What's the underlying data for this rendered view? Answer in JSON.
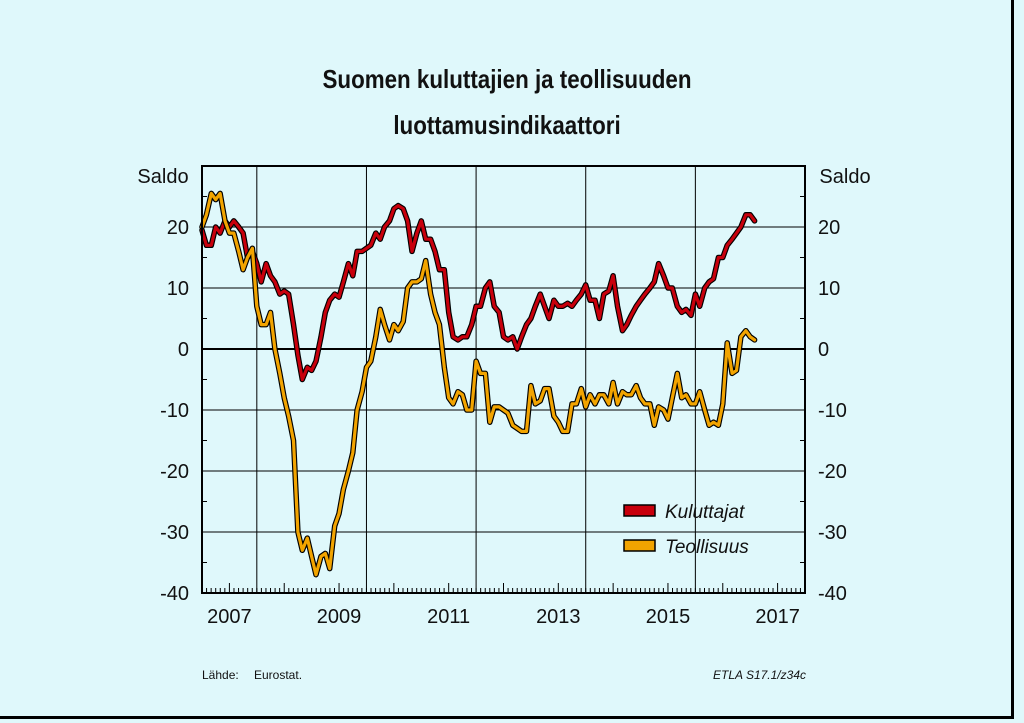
{
  "title_line1": "Suomen kuluttajien ja teollisuuden",
  "title_line2": "luottamusindikaattori",
  "source_label": "Lähde:",
  "source_value": "Eurostat.",
  "code": "ETLA S17.1/z34c",
  "colors": {
    "background": "#dff8fb",
    "kuluttajat": "#c8000c",
    "teollisuus": "#f2a400"
  },
  "chart_data": {
    "type": "line",
    "ylabel_left": "Saldo",
    "ylabel_right": "Saldo",
    "ylim": [
      -40,
      30
    ],
    "yticks": [
      20,
      10,
      0,
      -10,
      -20,
      -30,
      -40
    ],
    "xlim": [
      2006.5,
      2017.5
    ],
    "xticks": [
      2007,
      2009,
      2011,
      2013,
      2015,
      2017
    ],
    "grid": true,
    "legend_position": "bottom-right",
    "series": [
      {
        "name": "Kuluttajat",
        "color": "#c8000c",
        "points": [
          [
            2006.5,
            19.5
          ],
          [
            2006.58,
            17
          ],
          [
            2006.67,
            17
          ],
          [
            2006.75,
            20
          ],
          [
            2006.83,
            19
          ],
          [
            2006.92,
            21
          ],
          [
            2007.0,
            20
          ],
          [
            2007.08,
            21
          ],
          [
            2007.17,
            20
          ],
          [
            2007.25,
            19
          ],
          [
            2007.33,
            15
          ],
          [
            2007.42,
            16
          ],
          [
            2007.5,
            14
          ],
          [
            2007.58,
            11
          ],
          [
            2007.67,
            14
          ],
          [
            2007.75,
            12
          ],
          [
            2007.83,
            11
          ],
          [
            2007.92,
            9
          ],
          [
            2008.0,
            9.5
          ],
          [
            2008.08,
            9
          ],
          [
            2008.17,
            4
          ],
          [
            2008.25,
            -1
          ],
          [
            2008.33,
            -5
          ],
          [
            2008.42,
            -3
          ],
          [
            2008.5,
            -3.5
          ],
          [
            2008.58,
            -2
          ],
          [
            2008.67,
            2
          ],
          [
            2008.75,
            6
          ],
          [
            2008.83,
            8
          ],
          [
            2008.92,
            9
          ],
          [
            2009.0,
            8.5
          ],
          [
            2009.08,
            11
          ],
          [
            2009.17,
            14
          ],
          [
            2009.25,
            12
          ],
          [
            2009.33,
            16
          ],
          [
            2009.42,
            16
          ],
          [
            2009.5,
            16.5
          ],
          [
            2009.58,
            17
          ],
          [
            2009.67,
            19
          ],
          [
            2009.75,
            18
          ],
          [
            2009.83,
            20
          ],
          [
            2009.92,
            21
          ],
          [
            2010.0,
            23
          ],
          [
            2010.08,
            23.5
          ],
          [
            2010.17,
            23
          ],
          [
            2010.25,
            21
          ],
          [
            2010.33,
            16
          ],
          [
            2010.42,
            19
          ],
          [
            2010.5,
            21
          ],
          [
            2010.58,
            18
          ],
          [
            2010.67,
            18
          ],
          [
            2010.75,
            16
          ],
          [
            2010.83,
            13
          ],
          [
            2010.92,
            13
          ],
          [
            2011.0,
            6
          ],
          [
            2011.08,
            2
          ],
          [
            2011.17,
            1.5
          ],
          [
            2011.25,
            2
          ],
          [
            2011.33,
            2
          ],
          [
            2011.42,
            4
          ],
          [
            2011.5,
            7
          ],
          [
            2011.58,
            7
          ],
          [
            2011.67,
            10
          ],
          [
            2011.75,
            11
          ],
          [
            2011.83,
            7
          ],
          [
            2011.92,
            6
          ],
          [
            2012.0,
            2
          ],
          [
            2012.08,
            1.5
          ],
          [
            2012.17,
            2
          ],
          [
            2012.25,
            0
          ],
          [
            2012.33,
            2
          ],
          [
            2012.42,
            4
          ],
          [
            2012.5,
            5
          ],
          [
            2012.58,
            7
          ],
          [
            2012.67,
            9
          ],
          [
            2012.75,
            7
          ],
          [
            2012.83,
            5
          ],
          [
            2012.92,
            8
          ],
          [
            2013.0,
            7
          ],
          [
            2013.08,
            7
          ],
          [
            2013.17,
            7.5
          ],
          [
            2013.25,
            7
          ],
          [
            2013.33,
            8
          ],
          [
            2013.42,
            9
          ],
          [
            2013.5,
            10.5
          ],
          [
            2013.58,
            8
          ],
          [
            2013.67,
            8
          ],
          [
            2013.75,
            5
          ],
          [
            2013.83,
            9
          ],
          [
            2013.92,
            9.5
          ],
          [
            2014.0,
            12
          ],
          [
            2014.08,
            7
          ],
          [
            2014.17,
            3
          ],
          [
            2014.25,
            4
          ],
          [
            2014.33,
            5.5
          ],
          [
            2014.42,
            7
          ],
          [
            2014.5,
            8
          ],
          [
            2014.58,
            9
          ],
          [
            2014.67,
            10
          ],
          [
            2014.75,
            11
          ],
          [
            2014.83,
            14
          ],
          [
            2014.92,
            12
          ],
          [
            2015.0,
            10
          ],
          [
            2015.08,
            10
          ],
          [
            2015.17,
            7
          ],
          [
            2015.25,
            6
          ],
          [
            2015.33,
            6.5
          ],
          [
            2015.42,
            5.5
          ],
          [
            2015.5,
            9
          ],
          [
            2015.58,
            7
          ],
          [
            2015.67,
            10
          ],
          [
            2015.75,
            11
          ],
          [
            2015.83,
            11.5
          ],
          [
            2015.92,
            15
          ],
          [
            2016.0,
            15
          ],
          [
            2016.08,
            17
          ],
          [
            2016.17,
            18
          ],
          [
            2016.25,
            19
          ],
          [
            2016.33,
            20
          ],
          [
            2016.42,
            22
          ],
          [
            2016.5,
            22
          ],
          [
            2016.58,
            21
          ]
        ]
      },
      {
        "name": "Teollisuus",
        "color": "#f2a400",
        "points": [
          [
            2006.5,
            20
          ],
          [
            2006.58,
            22
          ],
          [
            2006.67,
            25.5
          ],
          [
            2006.75,
            24.5
          ],
          [
            2006.83,
            25.5
          ],
          [
            2006.92,
            21
          ],
          [
            2007.0,
            19
          ],
          [
            2007.08,
            19
          ],
          [
            2007.17,
            16
          ],
          [
            2007.25,
            13
          ],
          [
            2007.33,
            15
          ],
          [
            2007.42,
            16.5
          ],
          [
            2007.5,
            7
          ],
          [
            2007.58,
            4
          ],
          [
            2007.67,
            4
          ],
          [
            2007.75,
            6
          ],
          [
            2007.83,
            0
          ],
          [
            2007.92,
            -4
          ],
          [
            2008.0,
            -8
          ],
          [
            2008.08,
            -11
          ],
          [
            2008.17,
            -15
          ],
          [
            2008.25,
            -30
          ],
          [
            2008.33,
            -33
          ],
          [
            2008.42,
            -31
          ],
          [
            2008.5,
            -34
          ],
          [
            2008.58,
            -37
          ],
          [
            2008.67,
            -34
          ],
          [
            2008.75,
            -33.5
          ],
          [
            2008.83,
            -36
          ],
          [
            2008.92,
            -29
          ],
          [
            2009.0,
            -27
          ],
          [
            2009.08,
            -23
          ],
          [
            2009.17,
            -20
          ],
          [
            2009.25,
            -17
          ],
          [
            2009.33,
            -10
          ],
          [
            2009.42,
            -7
          ],
          [
            2009.5,
            -3
          ],
          [
            2009.58,
            -2
          ],
          [
            2009.67,
            2
          ],
          [
            2009.75,
            6.5
          ],
          [
            2009.83,
            4
          ],
          [
            2009.92,
            1.5
          ],
          [
            2010.0,
            4
          ],
          [
            2010.08,
            3
          ],
          [
            2010.17,
            4.5
          ],
          [
            2010.25,
            10
          ],
          [
            2010.33,
            11
          ],
          [
            2010.42,
            11
          ],
          [
            2010.5,
            11.5
          ],
          [
            2010.58,
            14.5
          ],
          [
            2010.67,
            9
          ],
          [
            2010.75,
            6
          ],
          [
            2010.83,
            4
          ],
          [
            2010.92,
            -3
          ],
          [
            2011.0,
            -8
          ],
          [
            2011.08,
            -9
          ],
          [
            2011.17,
            -7
          ],
          [
            2011.25,
            -7.5
          ],
          [
            2011.33,
            -10
          ],
          [
            2011.42,
            -10
          ],
          [
            2011.5,
            -2
          ],
          [
            2011.58,
            -4
          ],
          [
            2011.67,
            -4
          ],
          [
            2011.75,
            -12
          ],
          [
            2011.83,
            -9.5
          ],
          [
            2011.92,
            -9.5
          ],
          [
            2012.0,
            -10
          ],
          [
            2012.08,
            -10.5
          ],
          [
            2012.17,
            -12.5
          ],
          [
            2012.25,
            -13
          ],
          [
            2012.33,
            -13.5
          ],
          [
            2012.42,
            -13.5
          ],
          [
            2012.5,
            -6
          ],
          [
            2012.58,
            -9
          ],
          [
            2012.67,
            -8.5
          ],
          [
            2012.75,
            -6.5
          ],
          [
            2012.83,
            -6.5
          ],
          [
            2012.92,
            -11
          ],
          [
            2013.0,
            -12
          ],
          [
            2013.08,
            -13.5
          ],
          [
            2013.17,
            -13.5
          ],
          [
            2013.25,
            -9
          ],
          [
            2013.33,
            -9
          ],
          [
            2013.42,
            -6.5
          ],
          [
            2013.5,
            -9.5
          ],
          [
            2013.58,
            -7.5
          ],
          [
            2013.67,
            -9
          ],
          [
            2013.75,
            -7.5
          ],
          [
            2013.83,
            -7.5
          ],
          [
            2013.92,
            -9
          ],
          [
            2014.0,
            -5.5
          ],
          [
            2014.08,
            -9
          ],
          [
            2014.17,
            -7
          ],
          [
            2014.25,
            -7.5
          ],
          [
            2014.33,
            -7.5
          ],
          [
            2014.42,
            -6
          ],
          [
            2014.5,
            -8
          ],
          [
            2014.58,
            -9
          ],
          [
            2014.67,
            -9
          ],
          [
            2014.75,
            -12.5
          ],
          [
            2014.83,
            -9.5
          ],
          [
            2014.92,
            -10
          ],
          [
            2015.0,
            -11.5
          ],
          [
            2015.08,
            -8
          ],
          [
            2015.17,
            -4
          ],
          [
            2015.25,
            -8
          ],
          [
            2015.33,
            -7.5
          ],
          [
            2015.42,
            -9
          ],
          [
            2015.5,
            -9
          ],
          [
            2015.58,
            -7
          ],
          [
            2015.67,
            -10
          ],
          [
            2015.75,
            -12.5
          ],
          [
            2015.83,
            -12
          ],
          [
            2015.92,
            -12.5
          ],
          [
            2016.0,
            -9
          ],
          [
            2016.08,
            1
          ],
          [
            2016.17,
            -4
          ],
          [
            2016.25,
            -3.5
          ],
          [
            2016.33,
            2
          ],
          [
            2016.42,
            3
          ],
          [
            2016.5,
            2
          ],
          [
            2016.58,
            1.5
          ]
        ]
      }
    ]
  }
}
